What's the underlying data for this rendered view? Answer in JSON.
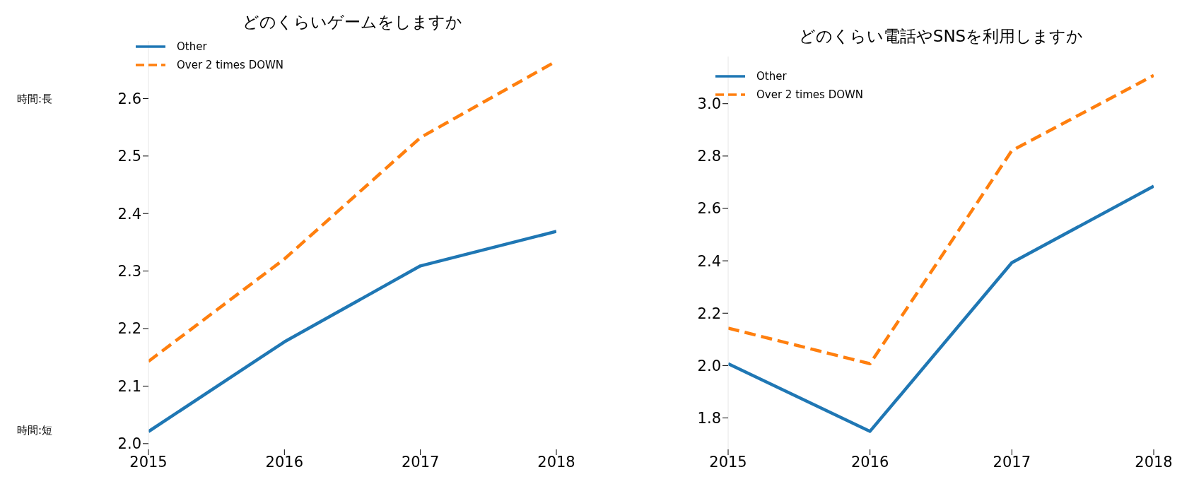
{
  "chart_data": [
    {
      "type": "line",
      "title": "どのくらいゲームをしますか",
      "x": [
        2015,
        2016,
        2017,
        2018
      ],
      "xlim": [
        2015,
        2018
      ],
      "xticks": [
        2015,
        2016,
        2017,
        2018
      ],
      "ylim": [
        1.99,
        2.7
      ],
      "yticks": [
        {
          "value": 2.0,
          "label": "2.0"
        },
        {
          "value": 2.1,
          "label": "2.1"
        },
        {
          "value": 2.2,
          "label": "2.2"
        },
        {
          "value": 2.3,
          "label": "2.3"
        },
        {
          "value": 2.4,
          "label": "2.4"
        },
        {
          "value": 2.5,
          "label": "2.5"
        },
        {
          "value": 2.6,
          "label": "2.6"
        }
      ],
      "grid": false,
      "legend": "top left",
      "annotations": [
        "時間:長",
        "時間:短"
      ],
      "series": [
        {
          "name": "Other",
          "color": "#1f77b4",
          "line_style": "solid",
          "values": [
            2.021,
            2.177,
            2.309,
            2.369
          ]
        },
        {
          "name": "Over 2 times DOWN",
          "color": "#ff7f0e",
          "line_style": "dashed",
          "values": [
            2.143,
            2.321,
            2.532,
            2.665
          ]
        }
      ]
    },
    {
      "type": "line",
      "title": "どのくらい電話やSNSを利用しますか",
      "x": [
        2015,
        2016,
        2017,
        2018
      ],
      "xlim": [
        2015,
        2018
      ],
      "xticks": [
        2015,
        2016,
        2017,
        2018
      ],
      "ylim": [
        1.68,
        3.18
      ],
      "yticks": [
        {
          "value": 1.8,
          "label": "1.8"
        },
        {
          "value": 2.0,
          "label": "2.0"
        },
        {
          "value": 2.2,
          "label": "2.2"
        },
        {
          "value": 2.4,
          "label": "2.4"
        },
        {
          "value": 2.6,
          "label": "2.6"
        },
        {
          "value": 2.8,
          "label": "2.8"
        },
        {
          "value": 3.0,
          "label": "3.0"
        }
      ],
      "grid": false,
      "legend": "top left",
      "series": [
        {
          "name": "Other",
          "color": "#1f77b4",
          "line_style": "solid",
          "values": [
            2.007,
            1.749,
            2.393,
            2.685
          ]
        },
        {
          "name": "Over 2 times DOWN",
          "color": "#ff7f0e",
          "line_style": "dashed",
          "values": [
            2.143,
            2.007,
            2.821,
            3.108
          ]
        }
      ]
    }
  ]
}
